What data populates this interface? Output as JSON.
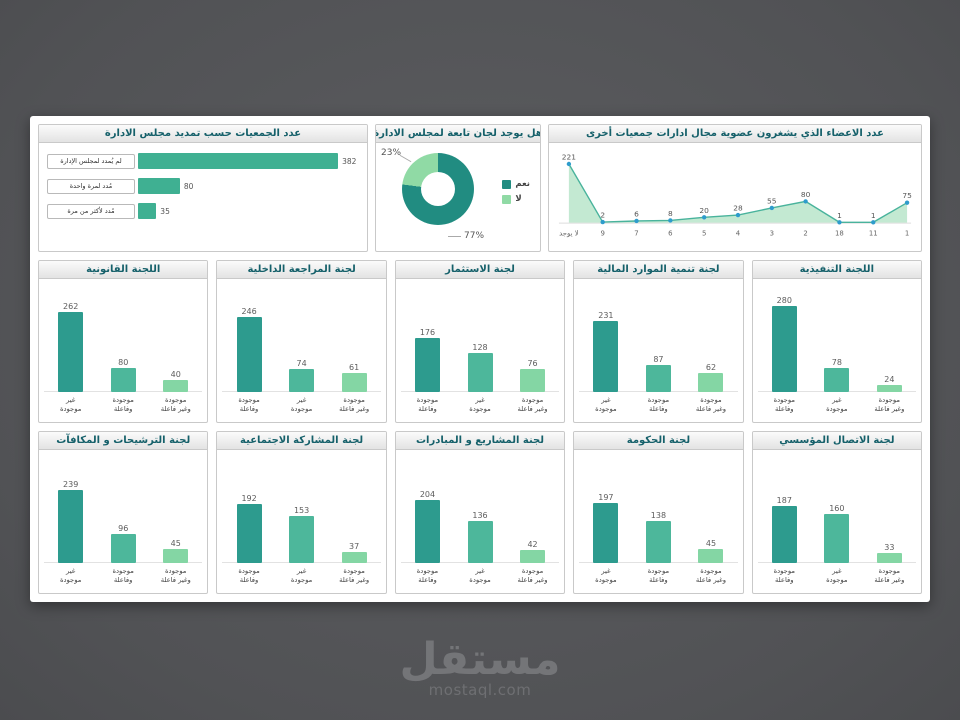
{
  "watermark": {
    "logo": "مستقل",
    "site": "mostaql.com"
  },
  "palette": {
    "bar_colors": [
      "#2d9b8e",
      "#4db79b",
      "#84d6a4"
    ],
    "hbar_color": "#3fb092",
    "donut_colors": [
      "#218c81",
      "#90daa5"
    ],
    "area_fill": "#bce7cd",
    "area_line": "#49b39c",
    "marker_color": "#2e9ccc",
    "header_text": "#15606a"
  },
  "chart_data": [
    {
      "id": "board-extension",
      "type": "bar",
      "orientation": "horizontal",
      "title": "عدد الجمعيات حسب تمديد مجلس الادارة",
      "categories": [
        "لم يُمدد لمجلس الإدارة",
        "مُدد لمرة واحدة",
        "مُدد لأكثر من مرة"
      ],
      "values": [
        382,
        80,
        35
      ],
      "xlim": [
        0,
        420
      ],
      "grid": false
    },
    {
      "id": "board-committees-donut",
      "type": "pie",
      "title": "هل يوجد لجان تابعة لمجلس الادارة",
      "labels": [
        "نعم",
        "لا"
      ],
      "values": [
        77,
        23
      ],
      "value_labels": [
        "77%",
        "23%"
      ],
      "legend_position": "right"
    },
    {
      "id": "members-other-boards",
      "type": "area",
      "title": "عدد الاعضاء الذي يشغرون عضوية مجال ادارات جمعيات أخرى",
      "x": [
        "لا يوجد",
        "9",
        "7",
        "6",
        "5",
        "4",
        "3",
        "2",
        "18",
        "11",
        "1"
      ],
      "values": [
        221,
        2,
        6,
        8,
        20,
        28,
        55,
        80,
        1,
        1,
        75
      ],
      "ylim": [
        0,
        240
      ],
      "grid": false
    },
    {
      "id": "legal-committee",
      "type": "bar",
      "row": 2,
      "title": "اللجنة القانونية",
      "categories": [
        "غير موجودة",
        "موجودة وفاعلة",
        "موجودة وغير فاعلة"
      ],
      "values": [
        262,
        80,
        40
      ],
      "ylim": [
        0,
        300
      ]
    },
    {
      "id": "internal-audit-committee",
      "type": "bar",
      "row": 2,
      "title": "لجنة المراجعة الداخلية",
      "categories": [
        "موجودة وفاعلة",
        "غير موجودة",
        "موجودة وغير فاعلة"
      ],
      "values": [
        246,
        74,
        61
      ],
      "ylim": [
        0,
        300
      ]
    },
    {
      "id": "investment-committee",
      "type": "bar",
      "row": 2,
      "title": "لجنة الاستثمار",
      "categories": [
        "موجودة وفاعلة",
        "غير موجودة",
        "موجودة وغير فاعلة"
      ],
      "values": [
        176,
        128,
        76
      ],
      "ylim": [
        0,
        300
      ]
    },
    {
      "id": "financial-resources-committee",
      "type": "bar",
      "row": 2,
      "title": "لجنة تنمية الموارد المالية",
      "categories": [
        "غير موجودة",
        "موجودة وفاعلة",
        "موجودة وغير فاعلة"
      ],
      "values": [
        231,
        87,
        62
      ],
      "ylim": [
        0,
        300
      ]
    },
    {
      "id": "executive-committee",
      "type": "bar",
      "row": 2,
      "title": "اللجنة التنفيذية",
      "categories": [
        "موجودة وفاعلة",
        "غير موجودة",
        "موجودة وغير فاعلة"
      ],
      "values": [
        280,
        78,
        24
      ],
      "ylim": [
        0,
        300
      ]
    },
    {
      "id": "nominations-committee",
      "type": "bar",
      "row": 3,
      "title": "لجنة الترشيحات و المكافآت",
      "categories": [
        "غير موجودة",
        "موجودة وفاعلة",
        "موجودة وغير فاعلة"
      ],
      "values": [
        239,
        96,
        45
      ],
      "ylim": [
        0,
        300
      ]
    },
    {
      "id": "social-participation-committee",
      "type": "bar",
      "row": 3,
      "title": "لجنة المشاركة الاجتماعية",
      "categories": [
        "موجودة وفاعلة",
        "غير موجودة",
        "موجودة وغير فاعلة"
      ],
      "values": [
        192,
        153,
        37
      ],
      "ylim": [
        0,
        300
      ]
    },
    {
      "id": "projects-initiatives-committee",
      "type": "bar",
      "row": 3,
      "title": "لجنة المشاريع و المبادرات",
      "categories": [
        "موجودة وفاعلة",
        "غير موجودة",
        "موجودة وغير فاعلة"
      ],
      "values": [
        204,
        136,
        42
      ],
      "ylim": [
        0,
        300
      ]
    },
    {
      "id": "governance-committee",
      "type": "bar",
      "row": 3,
      "title": "لجنة الحكومة",
      "categories": [
        "غير موجودة",
        "موجودة وفاعلة",
        "موجودة وغير فاعلة"
      ],
      "values": [
        197,
        138,
        45
      ],
      "ylim": [
        0,
        300
      ]
    },
    {
      "id": "corporate-communication-committee",
      "type": "bar",
      "row": 3,
      "title": "لجنة الاتصال المؤسسي",
      "categories": [
        "موجودة وفاعلة",
        "غير موجودة",
        "موجودة وغير فاعلة"
      ],
      "values": [
        187,
        160,
        33
      ],
      "ylim": [
        0,
        300
      ]
    }
  ]
}
